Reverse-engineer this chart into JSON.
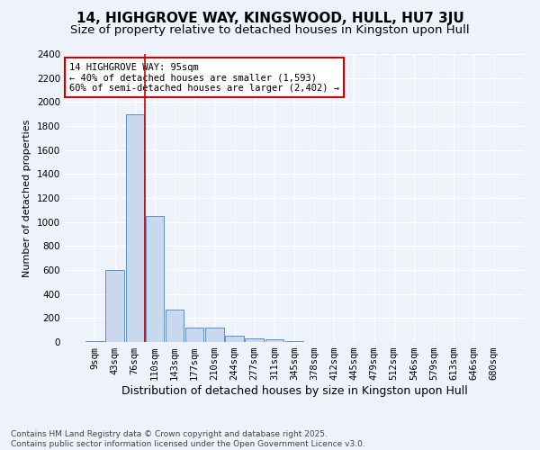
{
  "title": "14, HIGHGROVE WAY, KINGSWOOD, HULL, HU7 3JU",
  "subtitle": "Size of property relative to detached houses in Kingston upon Hull",
  "xlabel": "Distribution of detached houses by size in Kingston upon Hull",
  "ylabel": "Number of detached properties",
  "categories": [
    "9sqm",
    "43sqm",
    "76sqm",
    "110sqm",
    "143sqm",
    "177sqm",
    "210sqm",
    "244sqm",
    "277sqm",
    "311sqm",
    "345sqm",
    "378sqm",
    "412sqm",
    "445sqm",
    "479sqm",
    "512sqm",
    "546sqm",
    "579sqm",
    "613sqm",
    "646sqm",
    "680sqm"
  ],
  "values": [
    5,
    600,
    1900,
    1050,
    270,
    120,
    120,
    50,
    30,
    20,
    5,
    0,
    0,
    0,
    0,
    0,
    0,
    0,
    0,
    0,
    0
  ],
  "bar_color": "#c8d8ee",
  "bar_edge_color": "#6090c0",
  "background_color": "#eef2fb",
  "grid_color": "#ffffff",
  "vline_x": 2.5,
  "vline_color": "#cc0000",
  "annotation_text": "14 HIGHGROVE WAY: 95sqm\n← 40% of detached houses are smaller (1,593)\n60% of semi-detached houses are larger (2,402) →",
  "annotation_box_color": "#ffffff",
  "annotation_box_edge": "#cc0000",
  "ylim_max": 2400,
  "yticks": [
    0,
    200,
    400,
    600,
    800,
    1000,
    1200,
    1400,
    1600,
    1800,
    2000,
    2200,
    2400
  ],
  "footer_line1": "Contains HM Land Registry data © Crown copyright and database right 2025.",
  "footer_line2": "Contains public sector information licensed under the Open Government Licence v3.0.",
  "title_fontsize": 11,
  "subtitle_fontsize": 9.5,
  "xlabel_fontsize": 9,
  "ylabel_fontsize": 8,
  "tick_fontsize": 7.5,
  "annotation_fontsize": 7.5,
  "footer_fontsize": 6.5
}
